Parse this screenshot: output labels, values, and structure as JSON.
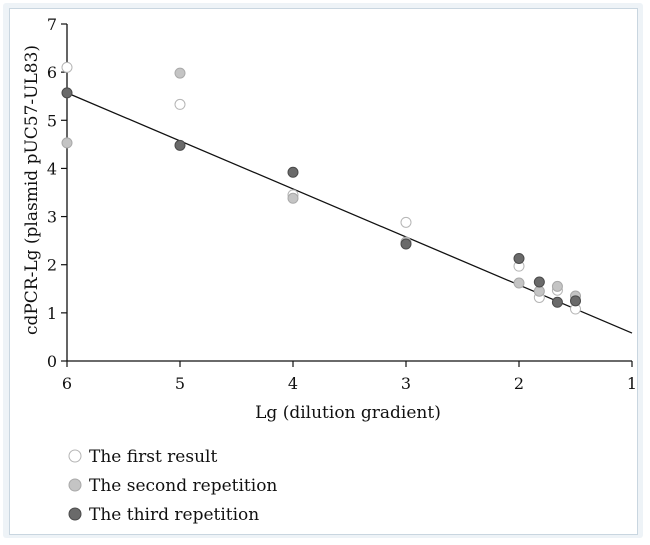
{
  "chart_data": {
    "type": "scatter",
    "xlabel": "Lg (dilution gradient)",
    "ylabel": "cdPCR-Lg (plasmid pUC57-UL83)",
    "xlim": [
      6,
      1
    ],
    "ylim": [
      0,
      7
    ],
    "x_reversed": true,
    "x_ticks": [
      6,
      5,
      4,
      3,
      2,
      1
    ],
    "y_ticks": [
      0,
      1,
      2,
      3,
      4,
      5,
      6,
      7
    ],
    "grid": false,
    "legend_position": "bottom-left, below plot",
    "series": [
      {
        "name": "The first result",
        "color": "#ffffff",
        "stroke": "#b5b5b5",
        "points": [
          [
            6,
            6.1
          ],
          [
            5,
            5.33
          ],
          [
            4,
            3.45
          ],
          [
            3,
            2.88
          ],
          [
            2,
            1.97
          ],
          [
            1.82,
            1.32
          ],
          [
            1.66,
            1.47
          ],
          [
            1.5,
            1.08
          ]
        ]
      },
      {
        "name": "The second repetition",
        "color": "#c4c4c4",
        "stroke": "#a9a9a9",
        "points": [
          [
            6,
            4.53
          ],
          [
            5,
            5.98
          ],
          [
            4,
            3.38
          ],
          [
            3,
            2.47
          ],
          [
            2,
            1.62
          ],
          [
            1.82,
            1.45
          ],
          [
            1.66,
            1.55
          ],
          [
            1.5,
            1.35
          ]
        ]
      },
      {
        "name": "The third repetition",
        "color": "#6a6a6a",
        "stroke": "#4a4a4a",
        "points": [
          [
            6,
            5.57
          ],
          [
            5,
            4.48
          ],
          [
            4,
            3.92
          ],
          [
            3,
            2.43
          ],
          [
            2,
            2.13
          ],
          [
            1.82,
            1.64
          ],
          [
            1.66,
            1.22
          ],
          [
            1.5,
            1.25
          ]
        ]
      }
    ],
    "trendline": {
      "x": [
        6,
        1
      ],
      "y": [
        5.57,
        0.58
      ]
    }
  }
}
